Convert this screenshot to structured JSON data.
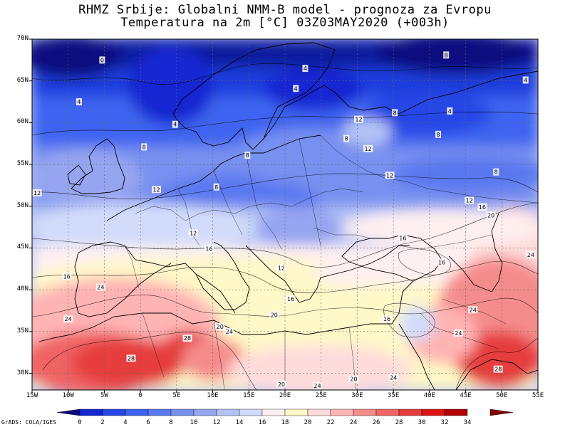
{
  "title": {
    "line1": "RHMZ Srbije: Globalni NMM-B model - prognoza za Evropu",
    "line2": "Temperatura na 2m [°C] 03Z03MAY2020 (+003h)"
  },
  "credit": "GrADS: COLA/IGES",
  "map": {
    "projection": "lat-lon",
    "lon_range": [
      -15,
      55
    ],
    "lat_range": [
      28,
      70
    ],
    "grid": true,
    "lat_labels": [
      "70N",
      "65N",
      "60N",
      "55N",
      "50N",
      "45N",
      "40N",
      "35N",
      "30N"
    ],
    "lon_labels": [
      "15W",
      "10W",
      "5W",
      "0",
      "5E",
      "10E",
      "15E",
      "20E",
      "25E",
      "30E",
      "35E",
      "40E",
      "45E",
      "50E",
      "55E"
    ]
  },
  "colorbar": {
    "labels": [
      "0",
      "2",
      "4",
      "6",
      "8",
      "10",
      "12",
      "14",
      "16",
      "18",
      "20",
      "22",
      "24",
      "26",
      "28",
      "30",
      "32",
      "34"
    ],
    "colors": [
      "#0a0a80",
      "#1428d2",
      "#2846e6",
      "#3c64f0",
      "#5a78f0",
      "#7890f0",
      "#96a5f0",
      "#b4c3f5",
      "#d2dcfa",
      "#fff0f0",
      "#fff8c8",
      "#ffdcdc",
      "#ffb4b4",
      "#f58c8c",
      "#f06464",
      "#e63c3c",
      "#dc1414",
      "#b40000",
      "#820000"
    ]
  },
  "contour_labels": [
    {
      "text": "0",
      "lon": -5.3,
      "lat": 67.5
    },
    {
      "text": "4",
      "lon": -8.5,
      "lat": 62.5
    },
    {
      "text": "4",
      "lon": 22.8,
      "lat": 66.5
    },
    {
      "text": "4",
      "lon": 4.8,
      "lat": 59.8
    },
    {
      "text": "4",
      "lon": 21.5,
      "lat": 64.1
    },
    {
      "text": "8",
      "lon": 0.5,
      "lat": 57.1
    },
    {
      "text": "8",
      "lon": 14.8,
      "lat": 56.1
    },
    {
      "text": "8",
      "lon": 28.5,
      "lat": 58.1
    },
    {
      "text": "8",
      "lon": 10.5,
      "lat": 52.3
    },
    {
      "text": "8",
      "lon": 35.2,
      "lat": 61.2
    },
    {
      "text": "4",
      "lon": 42.8,
      "lat": 61.4
    },
    {
      "text": "8",
      "lon": 41.2,
      "lat": 58.6
    },
    {
      "text": "8",
      "lon": 49.2,
      "lat": 54.1
    },
    {
      "text": "8",
      "lon": 42.3,
      "lat": 68.1
    },
    {
      "text": "4",
      "lon": 53.3,
      "lat": 65.1
    },
    {
      "text": "12",
      "lon": 30.2,
      "lat": 60.4
    },
    {
      "text": "12",
      "lon": 31.5,
      "lat": 56.9
    },
    {
      "text": "12",
      "lon": 34.5,
      "lat": 53.7
    },
    {
      "text": "12",
      "lon": -14.3,
      "lat": 51.6
    },
    {
      "text": "12",
      "lon": 2.2,
      "lat": 52.0
    },
    {
      "text": "12",
      "lon": 7.3,
      "lat": 46.8
    },
    {
      "text": "12",
      "lon": 19.5,
      "lat": 42.6
    },
    {
      "text": "12",
      "lon": 45.5,
      "lat": 50.7
    },
    {
      "text": "16",
      "lon": 9.5,
      "lat": 44.9
    },
    {
      "text": "16",
      "lon": 36.3,
      "lat": 46.2
    },
    {
      "text": "16",
      "lon": 41.7,
      "lat": 43.3
    },
    {
      "text": "16",
      "lon": -10.2,
      "lat": 41.6
    },
    {
      "text": "16",
      "lon": 20.8,
      "lat": 38.9
    },
    {
      "text": "16",
      "lon": 34.1,
      "lat": 36.5
    },
    {
      "text": "16",
      "lon": 47.3,
      "lat": 49.9
    },
    {
      "text": "20",
      "lon": 48.5,
      "lat": 48.9
    },
    {
      "text": "20",
      "lon": 18.5,
      "lat": 37.0
    },
    {
      "text": "20",
      "lon": 11.0,
      "lat": 35.6
    },
    {
      "text": "20",
      "lon": 29.5,
      "lat": 29.3
    },
    {
      "text": "20",
      "lon": 19.5,
      "lat": 28.7
    },
    {
      "text": "24",
      "lon": -5.5,
      "lat": 40.3
    },
    {
      "text": "24",
      "lon": -10.0,
      "lat": 36.5
    },
    {
      "text": "24",
      "lon": 12.3,
      "lat": 35.0
    },
    {
      "text": "24",
      "lon": 24.5,
      "lat": 28.5
    },
    {
      "text": "24",
      "lon": 35.0,
      "lat": 29.5
    },
    {
      "text": "24",
      "lon": 44.0,
      "lat": 34.8
    },
    {
      "text": "24",
      "lon": 46.0,
      "lat": 37.6
    },
    {
      "text": "24",
      "lon": 54.0,
      "lat": 44.2
    },
    {
      "text": "28",
      "lon": -1.3,
      "lat": 31.8
    },
    {
      "text": "28",
      "lon": 6.5,
      "lat": 34.2
    },
    {
      "text": "28",
      "lon": 49.5,
      "lat": 30.5
    }
  ]
}
